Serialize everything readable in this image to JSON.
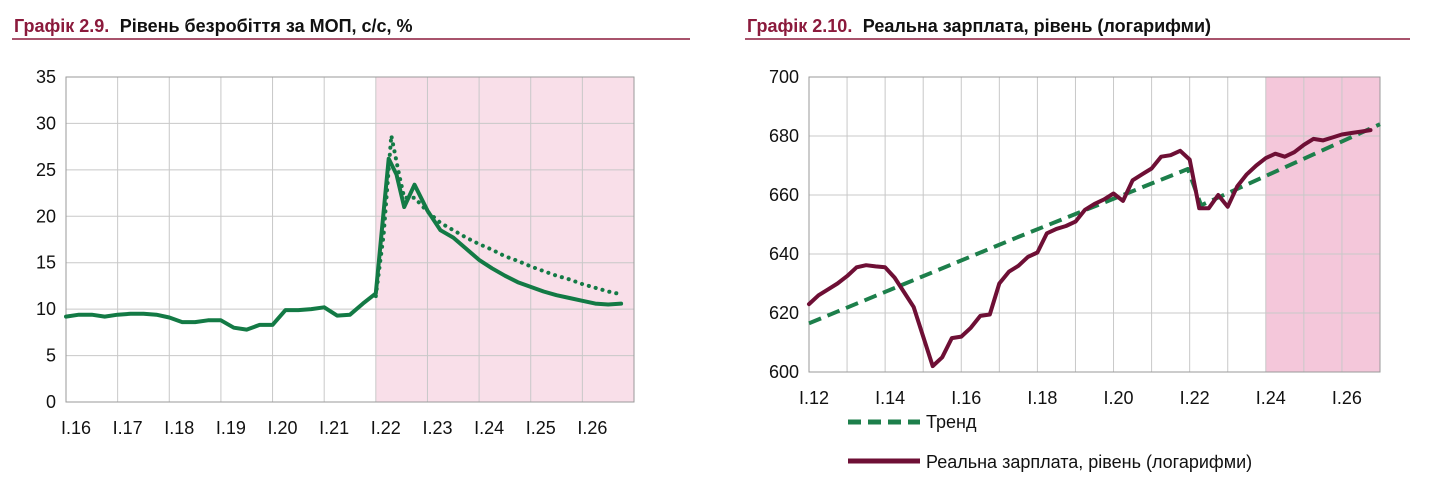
{
  "charts": [
    {
      "title_number": "Графік 2.9.",
      "title_text": "Рівень безробіття за МОП, с/с, %"
    },
    {
      "title_number": "Графік 2.10.",
      "title_text": "Реальна зарплата, рівень (логарифми)",
      "legend": {
        "trend": "Тренд",
        "wage": "Реальна зарплата, рівень (логарифми)"
      }
    }
  ],
  "colors": {
    "title_accent": "#8b1a3c",
    "title_rule": "#8b1a3c",
    "forecast_shade": "#f9dfe9",
    "forecast_shade_right": "#f4c7da",
    "unemployment_line": "#137a45",
    "trend_line": "#1d7f4b",
    "wage_line": "#6e0f35",
    "grid": "#c8c8c8"
  },
  "chart_data": [
    {
      "type": "line",
      "title": "Графік 2.9. Рівень безробіття за МОП, с/с, %",
      "x_tick_labels": [
        "I.16",
        "I.17",
        "I.18",
        "I.19",
        "I.20",
        "I.21",
        "I.22",
        "I.23",
        "I.24",
        "I.25",
        "I.26"
      ],
      "x_range": [
        2016.0,
        2027.0
      ],
      "ylim": [
        0,
        35
      ],
      "y_ticks": [
        0,
        5,
        10,
        15,
        20,
        25,
        30,
        35
      ],
      "grid": true,
      "forecast_shaded_from": 2022.0,
      "series": [
        {
          "style": "solid",
          "points": [
            [
              2016.0,
              9.2
            ],
            [
              2016.25,
              9.4
            ],
            [
              2016.5,
              9.4
            ],
            [
              2016.75,
              9.2
            ],
            [
              2017.0,
              9.4
            ],
            [
              2017.25,
              9.5
            ],
            [
              2017.5,
              9.5
            ],
            [
              2017.75,
              9.4
            ],
            [
              2018.0,
              9.1
            ],
            [
              2018.25,
              8.6
            ],
            [
              2018.5,
              8.6
            ],
            [
              2018.75,
              8.8
            ],
            [
              2019.0,
              8.8
            ],
            [
              2019.25,
              8.0
            ],
            [
              2019.5,
              7.8
            ],
            [
              2019.75,
              8.3
            ],
            [
              2020.0,
              8.3
            ],
            [
              2020.25,
              9.9
            ],
            [
              2020.5,
              9.9
            ],
            [
              2020.75,
              10.0
            ],
            [
              2021.0,
              10.2
            ],
            [
              2021.25,
              9.3
            ],
            [
              2021.5,
              9.4
            ],
            [
              2021.75,
              10.6
            ],
            [
              2022.0,
              11.7
            ],
            [
              2022.25,
              26.2
            ],
            [
              2022.4,
              24.5
            ],
            [
              2022.55,
              21.0
            ],
            [
              2022.75,
              23.4
            ],
            [
              2023.0,
              20.6
            ],
            [
              2023.25,
              18.5
            ],
            [
              2023.5,
              17.7
            ],
            [
              2023.75,
              16.5
            ],
            [
              2024.0,
              15.3
            ],
            [
              2024.25,
              14.4
            ],
            [
              2024.5,
              13.6
            ],
            [
              2024.75,
              12.9
            ],
            [
              2025.0,
              12.4
            ],
            [
              2025.25,
              11.9
            ],
            [
              2025.5,
              11.5
            ],
            [
              2025.75,
              11.2
            ],
            [
              2026.0,
              10.9
            ],
            [
              2026.25,
              10.6
            ],
            [
              2026.5,
              10.5
            ],
            [
              2026.75,
              10.6
            ]
          ]
        },
        {
          "style": "dotted",
          "points": [
            [
              2022.0,
              11.4
            ],
            [
              2022.15,
              18.0
            ],
            [
              2022.3,
              28.7
            ],
            [
              2022.45,
              24.5
            ],
            [
              2022.55,
              22.0
            ],
            [
              2022.75,
              22.0
            ],
            [
              2023.0,
              20.5
            ],
            [
              2023.25,
              19.3
            ],
            [
              2023.5,
              18.5
            ],
            [
              2023.75,
              17.7
            ],
            [
              2024.0,
              17.0
            ],
            [
              2024.25,
              16.4
            ],
            [
              2024.5,
              15.7
            ],
            [
              2024.75,
              15.2
            ],
            [
              2025.0,
              14.6
            ],
            [
              2025.25,
              14.1
            ],
            [
              2025.5,
              13.6
            ],
            [
              2025.75,
              13.2
            ],
            [
              2026.0,
              12.7
            ],
            [
              2026.25,
              12.3
            ],
            [
              2026.5,
              11.9
            ],
            [
              2026.75,
              11.6
            ]
          ]
        }
      ]
    },
    {
      "type": "line",
      "title": "Графік 2.10. Реальна зарплата, рівень (логарифми)",
      "x_tick_labels": [
        "I.12",
        "I.14",
        "I.16",
        "I.18",
        "I.20",
        "I.22",
        "I.24",
        "I.26"
      ],
      "x_range": [
        2012.0,
        2027.0
      ],
      "ylim": [
        600,
        700
      ],
      "y_ticks": [
        600,
        620,
        640,
        660,
        680,
        700
      ],
      "grid": true,
      "forecast_shaded_from": 2024.0,
      "series": [
        {
          "name": "Тренд",
          "style": "dashed",
          "points": [
            [
              2012.0,
              616.5
            ],
            [
              2017.5,
              645.8
            ],
            [
              2021.95,
              668.8
            ],
            [
              2022.3,
              656.5
            ],
            [
              2027.0,
              684.0
            ]
          ]
        },
        {
          "name": "Реальна зарплата, рівень (логарифми)",
          "style": "solid",
          "points": [
            [
              2012.0,
              623.0
            ],
            [
              2012.25,
              626.0
            ],
            [
              2012.5,
              628.0
            ],
            [
              2012.75,
              630.0
            ],
            [
              2013.0,
              632.5
            ],
            [
              2013.25,
              635.5
            ],
            [
              2013.5,
              636.2
            ],
            [
              2013.75,
              635.8
            ],
            [
              2014.0,
              635.5
            ],
            [
              2014.25,
              632.0
            ],
            [
              2014.5,
              627.0
            ],
            [
              2014.75,
              622.0
            ],
            [
              2015.0,
              612.0
            ],
            [
              2015.25,
              602.0
            ],
            [
              2015.5,
              605.0
            ],
            [
              2015.75,
              611.5
            ],
            [
              2016.0,
              612.0
            ],
            [
              2016.25,
              615.0
            ],
            [
              2016.5,
              619.0
            ],
            [
              2016.75,
              619.5
            ],
            [
              2017.0,
              630.0
            ],
            [
              2017.25,
              634.0
            ],
            [
              2017.5,
              636.0
            ],
            [
              2017.75,
              639.0
            ],
            [
              2018.0,
              640.5
            ],
            [
              2018.25,
              647.0
            ],
            [
              2018.5,
              648.5
            ],
            [
              2018.75,
              649.5
            ],
            [
              2019.0,
              651.0
            ],
            [
              2019.25,
              655.0
            ],
            [
              2019.5,
              657.0
            ],
            [
              2019.75,
              658.5
            ],
            [
              2020.0,
              660.5
            ],
            [
              2020.25,
              658.0
            ],
            [
              2020.5,
              665.0
            ],
            [
              2020.75,
              667.0
            ],
            [
              2021.0,
              669.0
            ],
            [
              2021.25,
              673.0
            ],
            [
              2021.5,
              673.5
            ],
            [
              2021.75,
              675.0
            ],
            [
              2022.0,
              672.0
            ],
            [
              2022.25,
              655.5
            ],
            [
              2022.5,
              655.5
            ],
            [
              2022.75,
              660.0
            ],
            [
              2023.0,
              656.0
            ],
            [
              2023.25,
              663.0
            ],
            [
              2023.5,
              667.0
            ],
            [
              2023.75,
              670.0
            ],
            [
              2024.0,
              672.5
            ],
            [
              2024.25,
              674.0
            ],
            [
              2024.5,
              673.0
            ],
            [
              2024.75,
              674.5
            ],
            [
              2025.0,
              677.0
            ],
            [
              2025.25,
              679.0
            ],
            [
              2025.5,
              678.5
            ],
            [
              2025.75,
              679.5
            ],
            [
              2026.0,
              680.5
            ],
            [
              2026.25,
              681.0
            ],
            [
              2026.5,
              681.5
            ],
            [
              2026.75,
              682.0
            ]
          ]
        }
      ]
    }
  ]
}
